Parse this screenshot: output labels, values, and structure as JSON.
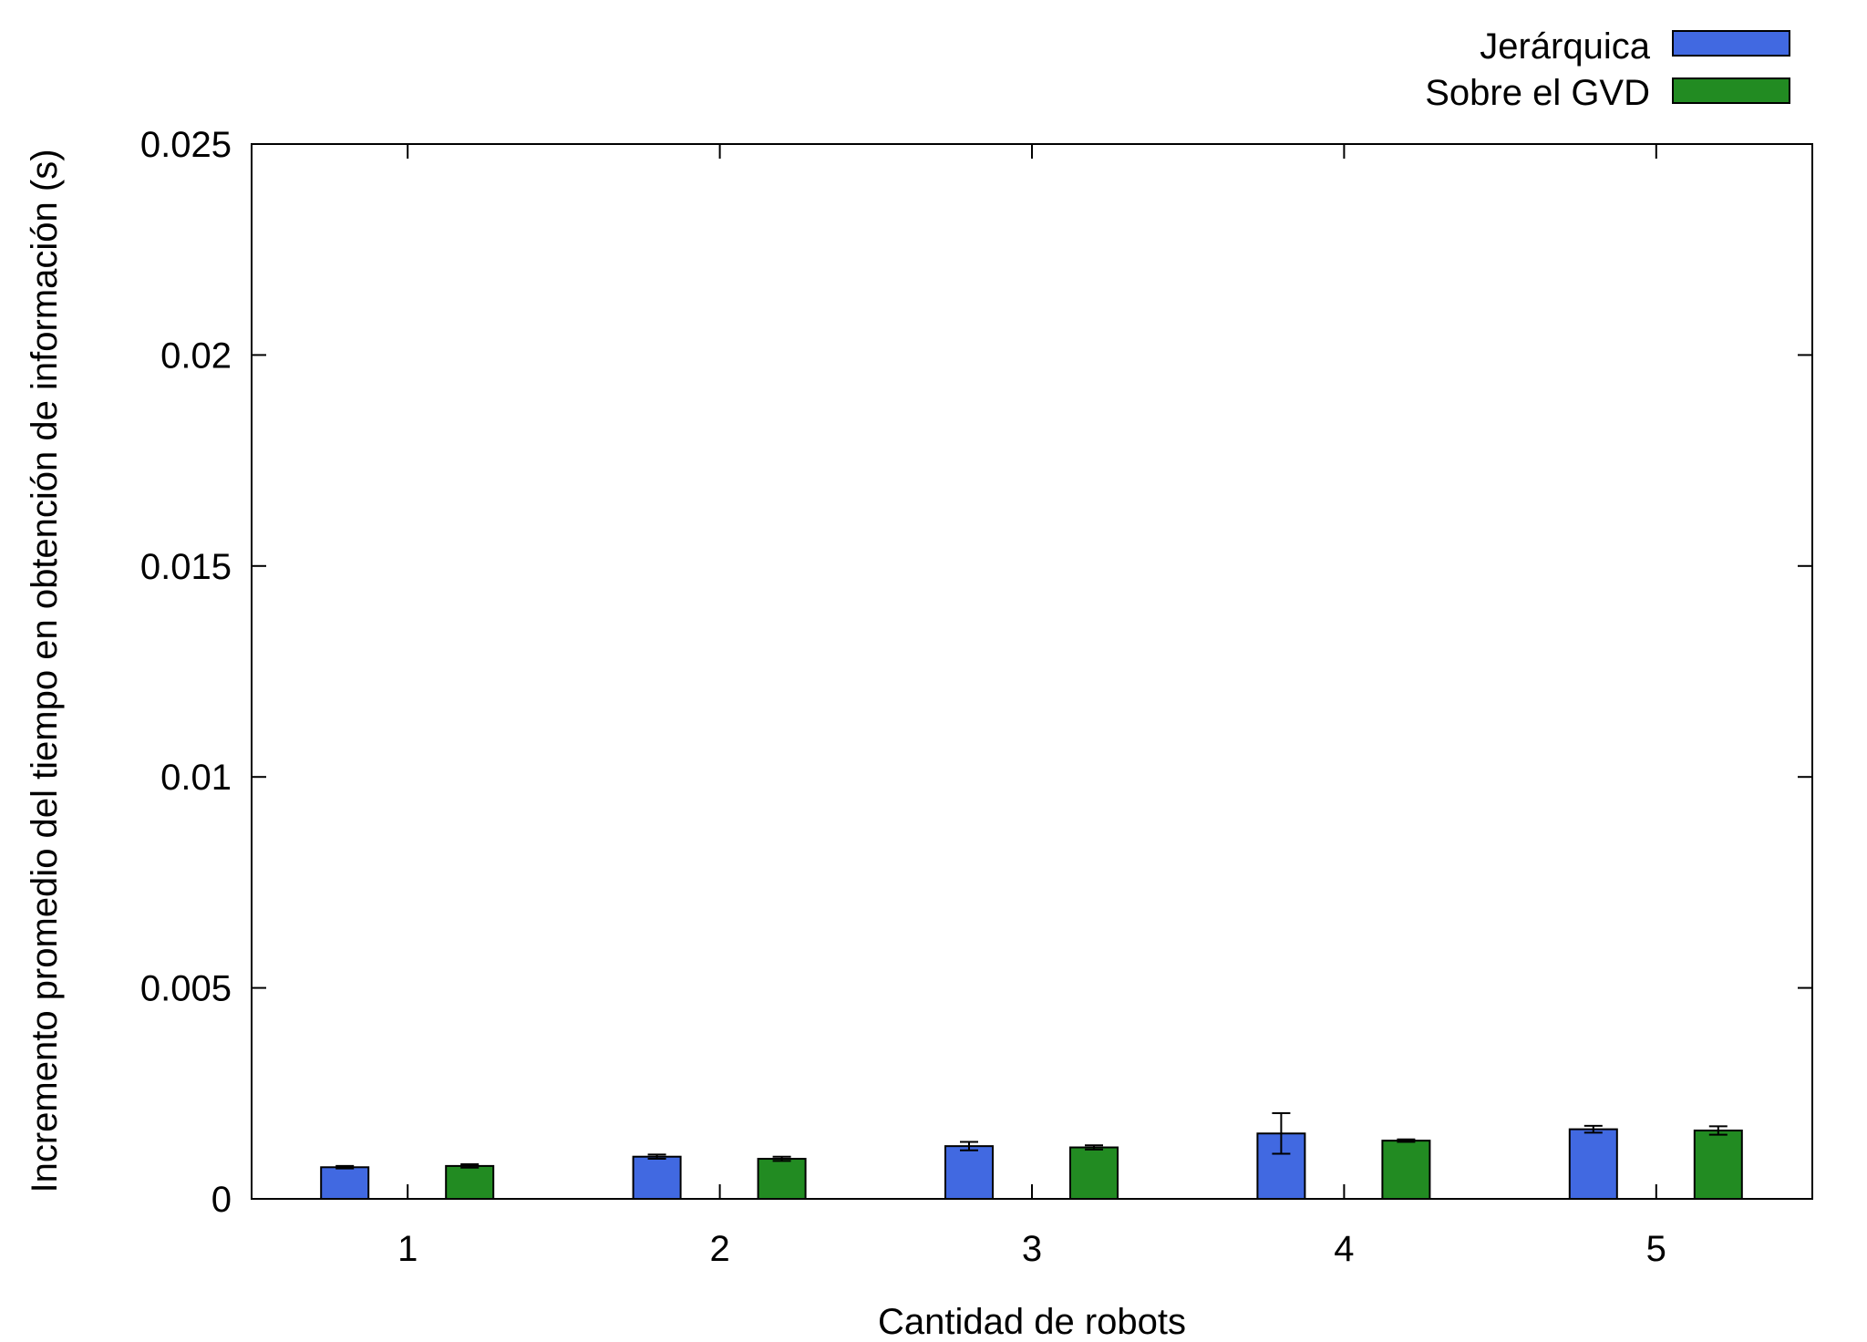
{
  "chart_data": {
    "type": "bar",
    "xlabel": "Cantidad de robots",
    "ylabel": "Incremento promedio del tiempo en obtención de información (s)",
    "categories": [
      "1",
      "2",
      "3",
      "4",
      "5"
    ],
    "ylim": [
      0,
      0.025
    ],
    "yticks": [
      "0",
      "0.005",
      "0.01",
      "0.015",
      "0.02",
      "0.025"
    ],
    "grid": false,
    "legend_position": "top-right",
    "series": [
      {
        "name": "Jerárquica",
        "color": "#4169e1",
        "values": [
          0.00075,
          0.001,
          0.00125,
          0.00155,
          0.00165
        ],
        "errors": [
          3e-05,
          5e-05,
          0.0001,
          0.00048,
          8e-05
        ]
      },
      {
        "name": "Sobre el GVD",
        "color": "#228b22",
        "values": [
          0.00078,
          0.00095,
          0.00122,
          0.00138,
          0.00162
        ],
        "errors": [
          4e-05,
          5e-05,
          5e-05,
          3e-05,
          0.0001
        ]
      }
    ]
  }
}
